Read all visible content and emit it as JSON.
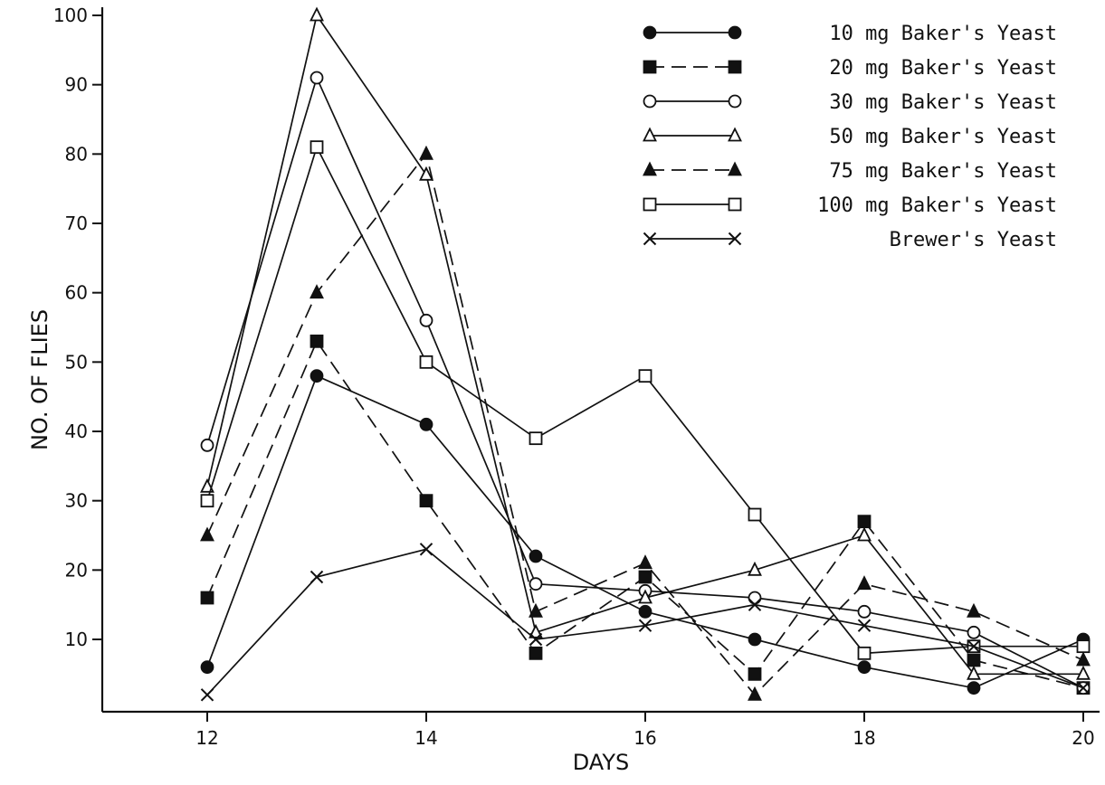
{
  "chart_data": {
    "type": "line",
    "title": "",
    "xlabel": "DAYS",
    "ylabel": "NO. OF FLIES",
    "xlim": [
      11.5,
      20.1
    ],
    "ylim": [
      -2,
      101
    ],
    "xticks": [
      12,
      14,
      16,
      18,
      20
    ],
    "yticks": [
      10,
      20,
      30,
      40,
      50,
      60,
      70,
      80,
      90,
      100
    ],
    "ytick_labels": [
      "10",
      "20",
      "30",
      "40",
      "50",
      "60",
      "70",
      "80",
      "90",
      "100"
    ],
    "grid": false,
    "legend_position": "top-right",
    "series": [
      {
        "name": "10 mg Baker's Yeast",
        "marker": "filled-circle",
        "dash": "solid",
        "x": [
          12,
          13,
          14,
          15,
          16,
          17,
          18,
          19,
          20
        ],
        "y": [
          6,
          48,
          41,
          22,
          14,
          10,
          6,
          3,
          10
        ]
      },
      {
        "name": "20 mg Baker's Yeast",
        "marker": "filled-square",
        "dash": "dashed",
        "x": [
          12,
          13,
          14,
          15,
          16,
          17,
          18,
          19,
          20
        ],
        "y": [
          16,
          53,
          30,
          8,
          19,
          5,
          27,
          7,
          3
        ]
      },
      {
        "name": "30 mg Baker's Yeast",
        "marker": "open-circle",
        "dash": "solid",
        "x": [
          12,
          13,
          14,
          15,
          16,
          17,
          18,
          19,
          20
        ],
        "y": [
          38,
          91,
          56,
          18,
          17,
          16,
          14,
          11,
          3
        ]
      },
      {
        "name": "50 mg Baker's Yeast",
        "marker": "open-triangle",
        "dash": "solid",
        "x": [
          12,
          13,
          14,
          15,
          16,
          17,
          18,
          19,
          20
        ],
        "y": [
          32,
          100,
          77,
          11,
          16,
          20,
          25,
          5,
          5
        ]
      },
      {
        "name": "75 mg Baker's Yeast",
        "marker": "filled-triangle",
        "dash": "dashed",
        "x": [
          12,
          13,
          14,
          15,
          16,
          17,
          18,
          19,
          20
        ],
        "y": [
          25,
          60,
          80,
          14,
          21,
          2,
          18,
          14,
          7
        ]
      },
      {
        "name": "100 mg Baker's Yeast",
        "marker": "open-square",
        "dash": "solid",
        "x": [
          12,
          13,
          14,
          15,
          16,
          17,
          18,
          19,
          20
        ],
        "y": [
          30,
          81,
          50,
          39,
          48,
          28,
          8,
          9,
          9
        ]
      },
      {
        "name": "Brewer's Yeast",
        "marker": "cross",
        "dash": "solid",
        "x": [
          12,
          13,
          14,
          15,
          16,
          17,
          18,
          19,
          20
        ],
        "y": [
          2,
          19,
          23,
          10,
          12,
          15,
          12,
          9,
          3
        ]
      }
    ]
  }
}
